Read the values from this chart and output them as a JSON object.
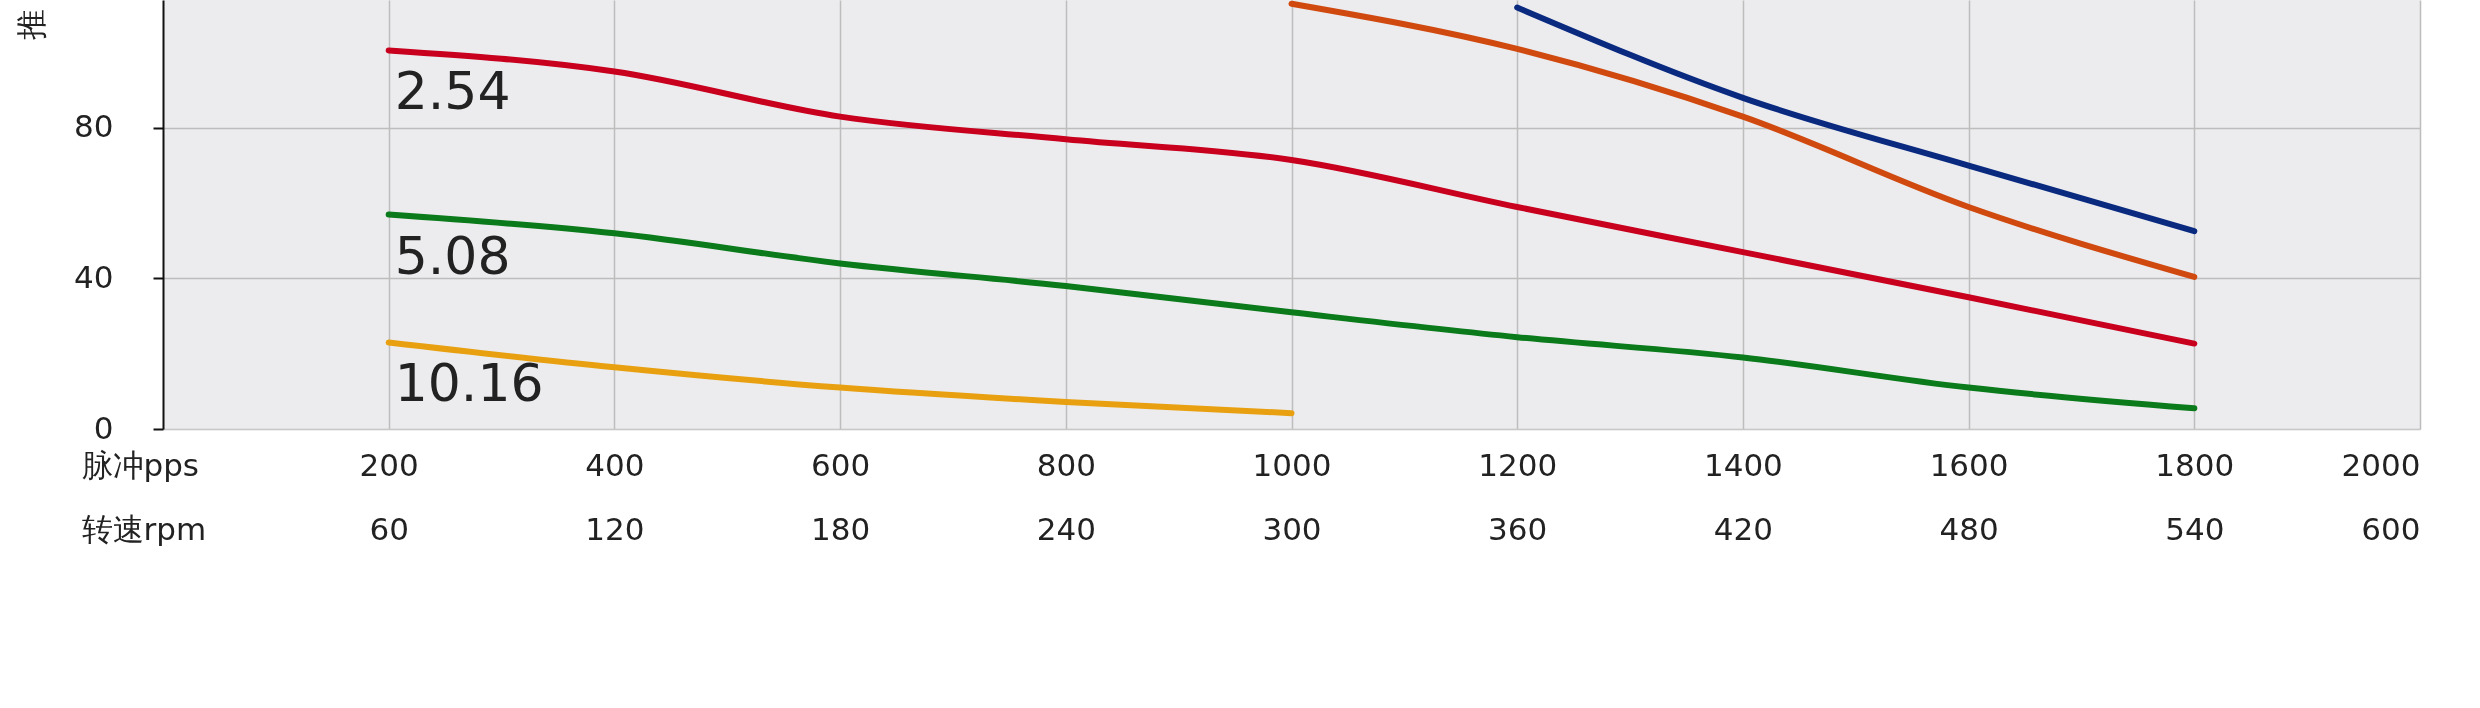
{
  "chart_data": {
    "type": "line",
    "ylabel": "推",
    "xlabel": "脉冲pps",
    "x2label": "转速rpm",
    "x": [
      200,
      400,
      600,
      800,
      1000,
      1200,
      1400,
      1600,
      1800
    ],
    "xlim": [
      0,
      2000
    ],
    "xticks": [
      200,
      400,
      600,
      800,
      1000,
      1200,
      1400,
      1600,
      1800,
      2000
    ],
    "x2lim": [
      0,
      600
    ],
    "x2ticks": [
      60,
      120,
      180,
      240,
      300,
      360,
      420,
      480,
      540,
      600
    ],
    "ylim": [
      0,
      114
    ],
    "yticks": [
      0,
      40,
      80
    ],
    "grid": true,
    "series": [
      {
        "name": "2.54",
        "color": "#c8001e",
        "values": [
          100.6,
          95,
          83,
          77,
          71.5,
          59,
          47,
          35,
          22.7
        ]
      },
      {
        "name": "5.08",
        "color": "#0a7a1a",
        "values": [
          57,
          52,
          44,
          38,
          31,
          24.4,
          19,
          11,
          5.5
        ]
      },
      {
        "name": "10.16",
        "color": "#e8a010",
        "values": [
          23,
          16.4,
          11,
          7.2,
          4.2,
          null,
          null,
          null,
          null
        ]
      },
      {
        "color": "#d04a10",
        "values": [
          null,
          null,
          null,
          null,
          113,
          101,
          83,
          59,
          40.4
        ]
      },
      {
        "color": "#0a2a80",
        "values": [
          null,
          null,
          null,
          null,
          null,
          112,
          88,
          70,
          52.6
        ]
      }
    ]
  }
}
